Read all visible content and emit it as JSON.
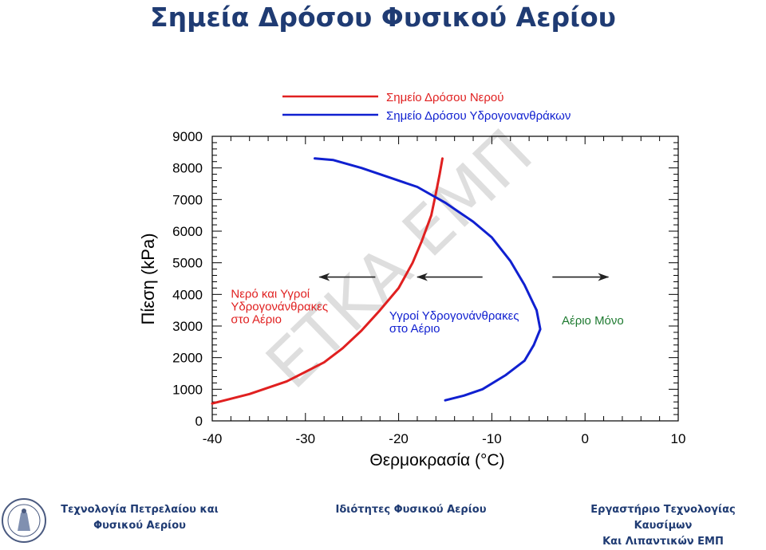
{
  "slide": {
    "title": "Σημεία Δρόσου Φυσικού Αερίου",
    "footer_left_line1": "Τεχνολογία Πετρελαίου και",
    "footer_left_line2": "Φυσικού Αερίου",
    "footer_center": "Ιδιότητες Φυσικού Αερίου",
    "footer_right_line1": "Εργαστήριο Τεχνολογίας Καυσίμων",
    "footer_right_line2": "Και Λιπαντικών ΕΜΠ",
    "watermark": "ΕΤΚΑ ΕΜΠ",
    "logo_icon": "ntua-seal-logo"
  },
  "chart_data": {
    "type": "line",
    "xlabel": "Θερμοκρασία (°C)",
    "ylabel": "Πίεση (kPa)",
    "xlim": [
      -40,
      10
    ],
    "ylim": [
      0,
      9000
    ],
    "xticks": [
      -40,
      -30,
      -20,
      -10,
      0,
      10
    ],
    "yticks": [
      0,
      1000,
      2000,
      3000,
      4000,
      5000,
      6000,
      7000,
      8000,
      9000
    ],
    "legend_position": "top",
    "series": [
      {
        "name": "Σημείο Δρόσου Νερού",
        "color": "#e02020",
        "points": [
          [
            -40,
            550
          ],
          [
            -36,
            850
          ],
          [
            -32,
            1250
          ],
          [
            -28,
            1850
          ],
          [
            -26,
            2300
          ],
          [
            -24,
            2850
          ],
          [
            -22,
            3500
          ],
          [
            -20,
            4200
          ],
          [
            -18.5,
            5000
          ],
          [
            -17.5,
            5700
          ],
          [
            -16.5,
            6500
          ],
          [
            -16,
            7200
          ],
          [
            -15.6,
            7800
          ],
          [
            -15.3,
            8300
          ]
        ]
      },
      {
        "name": "Σημείο Δρόσου Υδρογονανθράκων",
        "color": "#1020d0",
        "points": [
          [
            -29,
            8300
          ],
          [
            -27,
            8250
          ],
          [
            -24,
            8000
          ],
          [
            -21,
            7700
          ],
          [
            -18,
            7400
          ],
          [
            -15,
            6900
          ],
          [
            -12,
            6300
          ],
          [
            -10,
            5800
          ],
          [
            -8,
            5050
          ],
          [
            -6.5,
            4300
          ],
          [
            -5.2,
            3500
          ],
          [
            -4.8,
            2900
          ],
          [
            -5.5,
            2400
          ],
          [
            -6.5,
            1900
          ],
          [
            -8.5,
            1450
          ],
          [
            -11,
            1000
          ],
          [
            -13,
            800
          ],
          [
            -15,
            650
          ]
        ]
      }
    ],
    "annotations": [
      {
        "lines": [
          "Νερό και Υγροί",
          "Υδρογονάνθρακες",
          "στο Αέριο"
        ],
        "x": -38,
        "y": 3900,
        "color": "#e02020"
      },
      {
        "lines": [
          "Υγροί Υδρογονάνθρακες",
          "στο Αέριο"
        ],
        "x": -21,
        "y": 3200,
        "color": "#1020d0"
      },
      {
        "lines": [
          "Αέριο Μόνο"
        ],
        "x": -2.5,
        "y": 3050,
        "color": "#1e7a30"
      }
    ],
    "arrows": [
      {
        "from": [
          -22.5,
          4550
        ],
        "to": [
          -28.5,
          4550
        ],
        "color": "#222222"
      },
      {
        "from": [
          -11,
          4550
        ],
        "to": [
          -18,
          4550
        ],
        "color": "#222222"
      },
      {
        "from": [
          -3.5,
          4550
        ],
        "to": [
          2.5,
          4550
        ],
        "color": "#222222"
      }
    ]
  }
}
